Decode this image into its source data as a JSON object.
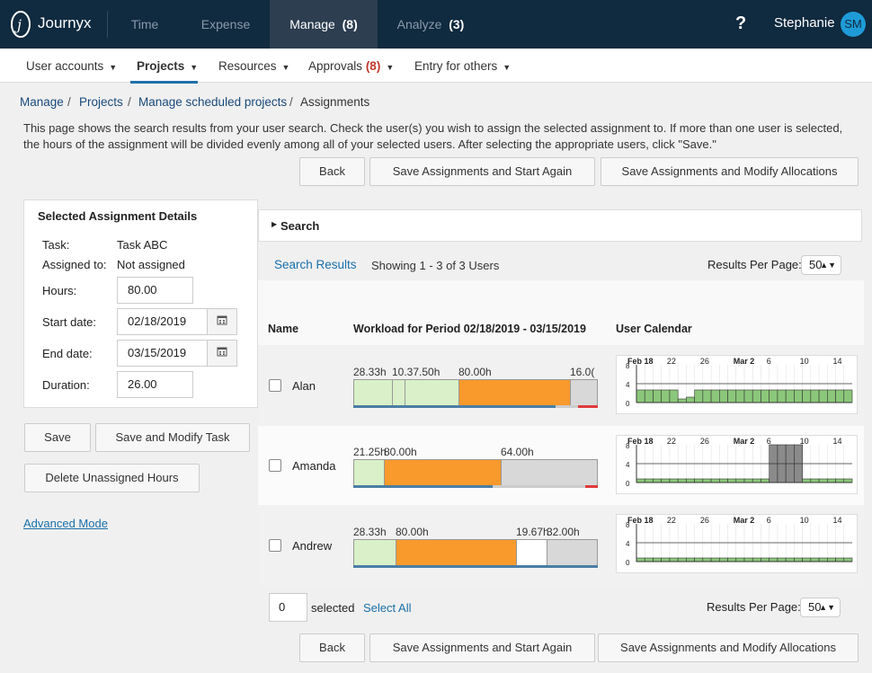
{
  "topbar": {
    "app_name": "Journyx",
    "nav": [
      {
        "label": "Time"
      },
      {
        "label": "Expense"
      },
      {
        "label": "Manage",
        "count": "(8)"
      },
      {
        "label": "Analyze",
        "count": "(3)"
      }
    ],
    "help": "?",
    "user_name": "Stephanie",
    "avatar_initials": "SM"
  },
  "subnav": {
    "items": [
      {
        "label": "User accounts"
      },
      {
        "label": "Projects"
      },
      {
        "label": "Resources"
      },
      {
        "label": "Approvals",
        "count": "(8)"
      },
      {
        "label": "Entry for others"
      }
    ]
  },
  "breadcrumb": [
    "Manage",
    "Projects",
    "Manage scheduled projects",
    "Assignments"
  ],
  "description": "This page shows the search results from your user search. Check the user(s) you wish to assign the selected assignment to. If more than one user is selected, the hours of the assignment will be divided evenly among all of your selected users. After selecting the appropriate users, click \"Save.\"",
  "actions": {
    "back": "Back",
    "save_start_again": "Save Assignments and Start Again",
    "save_modify": "Save Assignments and Modify Allocations"
  },
  "details": {
    "title": "Selected Assignment Details",
    "task_label": "Task:",
    "task_value": "Task ABC",
    "assigned_label": "Assigned to:",
    "assigned_value": "Not assigned",
    "hours_label": "Hours:",
    "hours_value": "80.00",
    "start_label": "Start date:",
    "start_value": "02/18/2019",
    "end_label": "End date:",
    "end_value": "03/15/2019",
    "duration_label": "Duration:",
    "duration_value": "26.00"
  },
  "left_buttons": {
    "save": "Save",
    "save_modify_task": "Save and Modify Task",
    "delete_unassigned": "Delete Unassigned Hours",
    "advanced_mode": "Advanced Mode"
  },
  "search": {
    "title": "Search",
    "results_label": "Search Results",
    "showing": "Showing 1 - 3 of 3 Users",
    "per_page_label": "Results Per Page:",
    "per_page_value": "50"
  },
  "table": {
    "col_name": "Name",
    "col_workload": "Workload for Period 02/18/2019 - 03/15/2019",
    "col_calendar": "User Calendar",
    "rows": [
      {
        "name": "Alan",
        "labels": [
          "28.33h",
          "10.37.50h",
          "80.00h",
          "16.0("
        ]
      },
      {
        "name": "Amanda",
        "labels": [
          "21.25h",
          "80.00h",
          "64.00h"
        ]
      },
      {
        "name": "Andrew",
        "labels": [
          "28.33h",
          "80.00h",
          "19.67h",
          "32.00h"
        ]
      }
    ],
    "calendar_ticks": [
      "Feb 18",
      "22",
      "26",
      "Mar 2",
      "6",
      "10",
      "14"
    ],
    "calendar_y": [
      "8",
      "4",
      "0"
    ]
  },
  "footer": {
    "selected_count": "0",
    "selected_label": "selected",
    "select_all": "Select All",
    "per_page_label": "Results Per Page:",
    "per_page_value": "50"
  },
  "colors": {
    "topbar": "#102a3f",
    "active_tab": "#2c3e50",
    "link": "#1a6fa8",
    "workload_orange": "#f99a2c",
    "workload_green": "#d9f0c9",
    "calendar_green": "#8bc77a"
  }
}
